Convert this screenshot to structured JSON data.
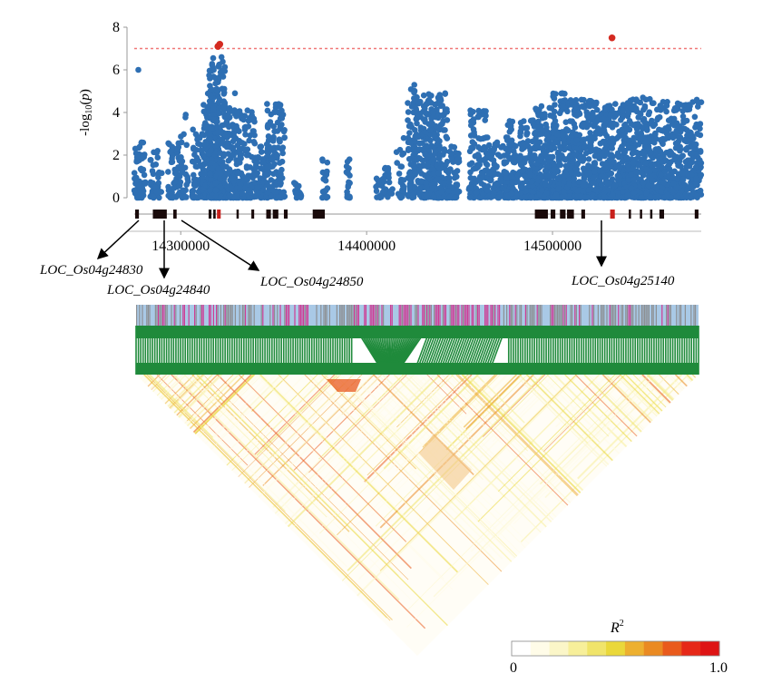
{
  "chart_data": {
    "type": "scatter",
    "title": "",
    "ylabel_prefix": "-log",
    "ylabel_sub": "10",
    "ylabel_var": "p",
    "ylim": [
      0,
      8
    ],
    "yticks": [
      "0",
      "2",
      "4",
      "6",
      "8"
    ],
    "xlim": [
      14275000,
      14580000
    ],
    "xticks": [
      {
        "value": 14300000,
        "label": "14300000"
      },
      {
        "value": 14400000,
        "label": "14400000"
      },
      {
        "value": 14500000,
        "label": "14500000"
      }
    ],
    "threshold": 7.0,
    "colors": {
      "points": "#2e6fb3",
      "significant": "#d42a20",
      "threshold": "#f07878",
      "gene_normal": "#1a0a0a",
      "gene_highlight": "#c8201c",
      "ld_track": "#1f8a3b",
      "snp_blue": "#a9c9e6",
      "snp_pink": "#d12e8c",
      "snp_grey": "#8a8a8a"
    },
    "significant_points": [
      {
        "x": 14320000,
        "y": 7.1
      },
      {
        "x": 14321000,
        "y": 7.2
      },
      {
        "x": 14532000,
        "y": 7.5
      }
    ],
    "point_clusters": [
      {
        "x0": 14275000,
        "x1": 14281000,
        "ymax": 2.6,
        "n": 60
      },
      {
        "x0": 14276000,
        "x1": 14278000,
        "ymax": 6.0,
        "n": 3
      },
      {
        "x0": 14283000,
        "x1": 14290000,
        "ymax": 2.2,
        "n": 40
      },
      {
        "x0": 14293000,
        "x1": 14301000,
        "ymax": 2.6,
        "n": 60
      },
      {
        "x0": 14300000,
        "x1": 14304000,
        "ymax": 3.9,
        "n": 20
      },
      {
        "x0": 14306000,
        "x1": 14312000,
        "ymax": 3.2,
        "n": 60
      },
      {
        "x0": 14312000,
        "x1": 14320000,
        "ymax": 5.1,
        "n": 180
      },
      {
        "x0": 14315000,
        "x1": 14324000,
        "ymax": 6.6,
        "n": 260
      },
      {
        "x0": 14324000,
        "x1": 14330000,
        "ymax": 4.9,
        "n": 100
      },
      {
        "x0": 14330000,
        "x1": 14340000,
        "ymax": 4.1,
        "n": 120
      },
      {
        "x0": 14340000,
        "x1": 14346000,
        "ymax": 2.4,
        "n": 60
      },
      {
        "x0": 14346000,
        "x1": 14356000,
        "ymax": 4.4,
        "n": 140
      },
      {
        "x0": 14361000,
        "x1": 14365000,
        "ymax": 0.7,
        "n": 20
      },
      {
        "x0": 14376000,
        "x1": 14379000,
        "ymax": 1.8,
        "n": 25
      },
      {
        "x0": 14389000,
        "x1": 14391000,
        "ymax": 1.8,
        "n": 20
      },
      {
        "x0": 14405000,
        "x1": 14409000,
        "ymax": 0.9,
        "n": 20
      },
      {
        "x0": 14409000,
        "x1": 14414000,
        "ymax": 1.4,
        "n": 25
      },
      {
        "x0": 14416000,
        "x1": 14420000,
        "ymax": 2.8,
        "n": 25
      },
      {
        "x0": 14422000,
        "x1": 14426000,
        "ymax": 5.3,
        "n": 70
      },
      {
        "x0": 14426000,
        "x1": 14431000,
        "ymax": 4.8,
        "n": 80
      },
      {
        "x0": 14431000,
        "x1": 14444000,
        "ymax": 4.9,
        "n": 240
      },
      {
        "x0": 14444000,
        "x1": 14450000,
        "ymax": 2.4,
        "n": 50
      },
      {
        "x0": 14455000,
        "x1": 14465000,
        "ymax": 4.1,
        "n": 120
      },
      {
        "x0": 14465000,
        "x1": 14475000,
        "ymax": 2.6,
        "n": 90
      },
      {
        "x0": 14475000,
        "x1": 14488000,
        "ymax": 3.6,
        "n": 180
      },
      {
        "x0": 14488000,
        "x1": 14500000,
        "ymax": 4.3,
        "n": 220
      },
      {
        "x0": 14500000,
        "x1": 14512000,
        "ymax": 4.9,
        "n": 260
      },
      {
        "x0": 14512000,
        "x1": 14526000,
        "ymax": 4.6,
        "n": 280
      },
      {
        "x0": 14526000,
        "x1": 14540000,
        "ymax": 4.4,
        "n": 260
      },
      {
        "x0": 14540000,
        "x1": 14555000,
        "ymax": 4.7,
        "n": 300
      },
      {
        "x0": 14555000,
        "x1": 14570000,
        "ymax": 4.5,
        "n": 280
      },
      {
        "x0": 14570000,
        "x1": 14580000,
        "ymax": 4.6,
        "n": 140
      }
    ],
    "genes": [
      {
        "x0": 14275500,
        "x1": 14277500,
        "highlight": false
      },
      {
        "x0": 14285000,
        "x1": 14292500,
        "highlight": false
      },
      {
        "x0": 14296000,
        "x1": 14297800,
        "highlight": false
      },
      {
        "x0": 14315000,
        "x1": 14316500,
        "highlight": false
      },
      {
        "x0": 14317500,
        "x1": 14318800,
        "highlight": false
      },
      {
        "x0": 14319500,
        "x1": 14321500,
        "highlight": true
      },
      {
        "x0": 14330000,
        "x1": 14331200,
        "highlight": false
      },
      {
        "x0": 14338000,
        "x1": 14339500,
        "highlight": false
      },
      {
        "x0": 14346000,
        "x1": 14348500,
        "highlight": false
      },
      {
        "x0": 14349500,
        "x1": 14352500,
        "highlight": false
      },
      {
        "x0": 14355500,
        "x1": 14357500,
        "highlight": false
      },
      {
        "x0": 14371000,
        "x1": 14377500,
        "highlight": false
      },
      {
        "x0": 14490500,
        "x1": 14497500,
        "highlight": false
      },
      {
        "x0": 14499000,
        "x1": 14501500,
        "highlight": false
      },
      {
        "x0": 14504000,
        "x1": 14507000,
        "highlight": false
      },
      {
        "x0": 14507800,
        "x1": 14511500,
        "highlight": false
      },
      {
        "x0": 14515500,
        "x1": 14517500,
        "highlight": false
      },
      {
        "x0": 14531000,
        "x1": 14533500,
        "highlight": true
      },
      {
        "x0": 14541000,
        "x1": 14542000,
        "highlight": false
      },
      {
        "x0": 14547000,
        "x1": 14548000,
        "highlight": false
      },
      {
        "x0": 14552500,
        "x1": 14553500,
        "highlight": false
      },
      {
        "x0": 14557500,
        "x1": 14560000,
        "highlight": false
      },
      {
        "x0": 14576500,
        "x1": 14578500,
        "highlight": false
      }
    ],
    "gene_labels": [
      {
        "label": "LOC_Os04g24830",
        "gene_x": 14276500
      },
      {
        "label": "LOC_Os04g24840",
        "gene_x": 14289000
      },
      {
        "label": "LOC_Os04g24850",
        "gene_x": 14297000
      },
      {
        "label": "LOC_Os04g25140",
        "gene_x": 14532000
      }
    ],
    "ld_legend": {
      "title": "R",
      "title_sup": "2",
      "min_label": "0",
      "max_label": "1.0",
      "colors": [
        "#ffffff",
        "#fffce8",
        "#fbf6c8",
        "#f7ef9a",
        "#f0e46a",
        "#ead83a",
        "#edb030",
        "#ea8a22",
        "#e95a1c",
        "#e62818",
        "#de1414"
      ]
    }
  }
}
